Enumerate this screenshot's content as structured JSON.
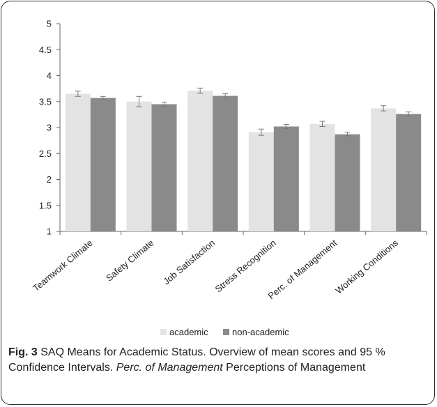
{
  "colors": {
    "academic": "#e3e3e3",
    "non_academic": "#8a8a8a",
    "axis": "#666666",
    "error_bar": "#777777"
  },
  "chart_data": {
    "type": "bar",
    "categories": [
      "Teamwork Climate",
      "Safety Climate",
      "Job Satisfaction",
      "Stress Recognition",
      "Perc. of Management",
      "Working Conditions"
    ],
    "series": [
      {
        "name": "academic",
        "values": [
          3.65,
          3.5,
          3.71,
          2.91,
          3.07,
          3.37
        ],
        "ci_low": [
          3.6,
          3.4,
          3.66,
          2.85,
          3.02,
          3.32
        ],
        "ci_high": [
          3.7,
          3.6,
          3.76,
          2.97,
          3.12,
          3.42
        ]
      },
      {
        "name": "non-academic",
        "values": [
          3.57,
          3.45,
          3.61,
          3.02,
          2.87,
          3.26
        ],
        "ci_low": [
          3.54,
          3.41,
          3.57,
          2.98,
          2.84,
          3.22
        ],
        "ci_high": [
          3.6,
          3.49,
          3.65,
          3.06,
          2.91,
          3.3
        ]
      }
    ],
    "ylim": [
      1,
      5
    ],
    "yticks": [
      "1",
      "1.5",
      "2",
      "2.5",
      "3",
      "3.5",
      "4",
      "4.5",
      "5"
    ],
    "grid": false,
    "legend_position": "bottom"
  },
  "caption": {
    "fig_label": "Fig. 3",
    "title": " SAQ Means for Academic Status. Overview of mean scores and 95 % Confidence Intervals. ",
    "abbr": "Perc. of Management",
    "abbr_def": " Perceptions of Management"
  }
}
